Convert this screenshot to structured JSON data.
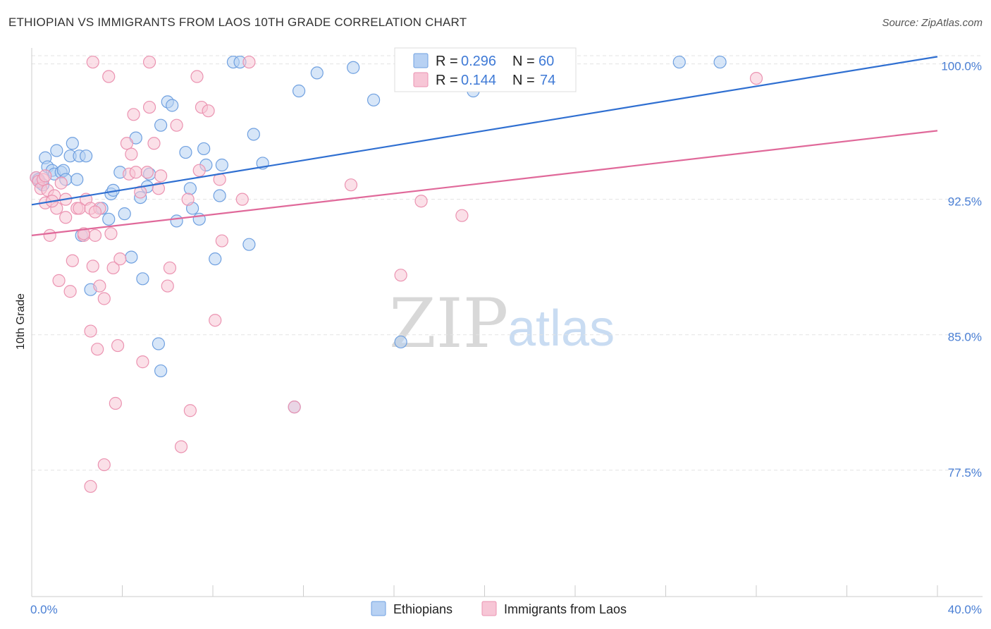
{
  "title": "ETHIOPIAN VS IMMIGRANTS FROM LAOS 10TH GRADE CORRELATION CHART",
  "source": "Source: ZipAtlas.com",
  "colors": {
    "blue_fill": "#b7d1f3",
    "blue_stroke": "#6fa0e0",
    "blue_line": "#2f6fd1",
    "pink_fill": "#f7c6d6",
    "pink_stroke": "#eb93b1",
    "pink_line": "#e0699a",
    "tick_color": "#4a7fd4",
    "grid": "#e3e3e3"
  },
  "watermark": {
    "zip": "ZIP",
    "atlas": "atlas"
  },
  "legend": {
    "r_label": "R =",
    "n_label": "N =",
    "series": [
      {
        "r": "0.296",
        "n": "60"
      },
      {
        "r": "0.144",
        "n": "74"
      }
    ]
  },
  "chart_data": {
    "type": "scatter",
    "title": "ETHIOPIAN VS IMMIGRANTS FROM LAOS 10TH GRADE CORRELATION CHART",
    "xlabel": "",
    "ylabel": "10th Grade",
    "xlim": [
      0,
      40
    ],
    "ylim": [
      70.5,
      101
    ],
    "x_tick_labels": [
      {
        "value": 0,
        "label": "0.0%"
      },
      {
        "value": 40,
        "label": "40.0%"
      }
    ],
    "y_ticks": [
      {
        "value": 100,
        "label": "100.0%"
      },
      {
        "value": 92.5,
        "label": "92.5%"
      },
      {
        "value": 85,
        "label": "85.0%"
      },
      {
        "value": 77.5,
        "label": "77.5%"
      }
    ],
    "x_minor_ticks": [
      0,
      4,
      8,
      12,
      16,
      20,
      24,
      28,
      32,
      36,
      40
    ],
    "series": [
      {
        "name": "Ethiopians",
        "color": "blue",
        "trend": {
          "x": [
            0,
            40
          ],
          "y": [
            92.2,
            100.4
          ]
        },
        "points": [
          [
            0.2,
            93.7
          ],
          [
            0.3,
            93.6
          ],
          [
            0.4,
            93.4
          ],
          [
            0.5,
            93.3
          ],
          [
            0.6,
            94.8
          ],
          [
            0.7,
            94.3
          ],
          [
            0.9,
            94.1
          ],
          [
            1.0,
            93.9
          ],
          [
            1.1,
            95.2
          ],
          [
            1.3,
            94.0
          ],
          [
            1.4,
            94.1
          ],
          [
            1.5,
            93.6
          ],
          [
            1.7,
            94.9
          ],
          [
            1.8,
            95.6
          ],
          [
            2.0,
            93.6
          ],
          [
            2.1,
            94.9
          ],
          [
            2.2,
            90.5
          ],
          [
            2.4,
            94.9
          ],
          [
            2.6,
            87.5
          ],
          [
            3.1,
            92.0
          ],
          [
            3.4,
            91.4
          ],
          [
            3.5,
            92.8
          ],
          [
            3.6,
            93.0
          ],
          [
            3.9,
            94.0
          ],
          [
            4.1,
            91.7
          ],
          [
            4.4,
            89.3
          ],
          [
            4.6,
            95.9
          ],
          [
            4.8,
            92.6
          ],
          [
            4.9,
            88.1
          ],
          [
            5.1,
            93.2
          ],
          [
            5.2,
            93.9
          ],
          [
            5.6,
            84.5
          ],
          [
            5.7,
            96.6
          ],
          [
            6.0,
            97.9
          ],
          [
            6.2,
            97.7
          ],
          [
            6.4,
            91.3
          ],
          [
            6.8,
            95.1
          ],
          [
            7.0,
            93.1
          ],
          [
            7.1,
            92.0
          ],
          [
            7.4,
            91.4
          ],
          [
            7.6,
            95.3
          ],
          [
            7.7,
            94.4
          ],
          [
            8.1,
            89.2
          ],
          [
            8.3,
            92.7
          ],
          [
            8.4,
            94.4
          ],
          [
            8.9,
            100.1
          ],
          [
            9.2,
            100.1
          ],
          [
            9.6,
            90.0
          ],
          [
            9.8,
            96.1
          ],
          [
            10.2,
            94.5
          ],
          [
            11.8,
            98.5
          ],
          [
            11.6,
            81.0
          ],
          [
            12.6,
            99.5
          ],
          [
            14.2,
            99.8
          ],
          [
            15.1,
            98.0
          ],
          [
            16.3,
            84.6
          ],
          [
            19.5,
            98.5
          ],
          [
            28.6,
            100.1
          ],
          [
            30.4,
            100.1
          ],
          [
            5.7,
            83.0
          ]
        ]
      },
      {
        "name": "Immigrants from Laos",
        "color": "pink",
        "trend": {
          "x": [
            0,
            40
          ],
          "y": [
            90.5,
            96.3
          ]
        },
        "points": [
          [
            0.2,
            93.7
          ],
          [
            0.3,
            93.5
          ],
          [
            0.4,
            93.1
          ],
          [
            0.5,
            93.6
          ],
          [
            0.6,
            92.3
          ],
          [
            0.7,
            93.0
          ],
          [
            0.8,
            90.5
          ],
          [
            1.0,
            92.7
          ],
          [
            1.1,
            92.0
          ],
          [
            1.2,
            88.0
          ],
          [
            1.5,
            92.5
          ],
          [
            1.7,
            87.4
          ],
          [
            1.8,
            89.1
          ],
          [
            2.0,
            92.0
          ],
          [
            2.1,
            92.0
          ],
          [
            2.3,
            90.5
          ],
          [
            2.4,
            92.5
          ],
          [
            2.6,
            92.0
          ],
          [
            2.6,
            85.2
          ],
          [
            2.7,
            88.8
          ],
          [
            2.8,
            90.5
          ],
          [
            2.9,
            84.2
          ],
          [
            3.0,
            87.7
          ],
          [
            3.0,
            92.0
          ],
          [
            3.2,
            87.0
          ],
          [
            3.4,
            99.3
          ],
          [
            3.5,
            90.6
          ],
          [
            3.6,
            88.7
          ],
          [
            3.7,
            81.2
          ],
          [
            3.8,
            84.4
          ],
          [
            3.9,
            89.2
          ],
          [
            4.2,
            95.6
          ],
          [
            4.3,
            93.9
          ],
          [
            4.4,
            95.0
          ],
          [
            4.5,
            97.2
          ],
          [
            4.6,
            94.0
          ],
          [
            4.8,
            92.9
          ],
          [
            4.9,
            83.5
          ],
          [
            5.1,
            94.0
          ],
          [
            5.2,
            97.6
          ],
          [
            5.4,
            95.6
          ],
          [
            5.6,
            93.1
          ],
          [
            5.7,
            93.8
          ],
          [
            6.0,
            87.7
          ],
          [
            6.1,
            88.7
          ],
          [
            6.4,
            96.6
          ],
          [
            6.6,
            78.8
          ],
          [
            6.9,
            92.5
          ],
          [
            7.0,
            80.8
          ],
          [
            7.3,
            99.3
          ],
          [
            7.4,
            94.1
          ],
          [
            7.5,
            97.6
          ],
          [
            7.8,
            97.4
          ],
          [
            8.1,
            85.8
          ],
          [
            8.3,
            93.6
          ],
          [
            8.4,
            90.2
          ],
          [
            9.3,
            92.5
          ],
          [
            9.6,
            100.1
          ],
          [
            11.6,
            81.0
          ],
          [
            14.1,
            93.3
          ],
          [
            16.3,
            88.3
          ],
          [
            17.2,
            92.4
          ],
          [
            19.0,
            91.6
          ],
          [
            32.0,
            99.2
          ],
          [
            5.2,
            100.1
          ],
          [
            2.7,
            100.1
          ],
          [
            2.8,
            91.8
          ],
          [
            2.3,
            90.6
          ],
          [
            1.5,
            91.5
          ],
          [
            0.9,
            92.4
          ],
          [
            0.6,
            93.8
          ],
          [
            1.3,
            93.4
          ],
          [
            3.2,
            77.8
          ],
          [
            2.6,
            76.6
          ]
        ]
      }
    ]
  },
  "bottom_legend": [
    "Ethiopians",
    "Immigrants from Laos"
  ]
}
